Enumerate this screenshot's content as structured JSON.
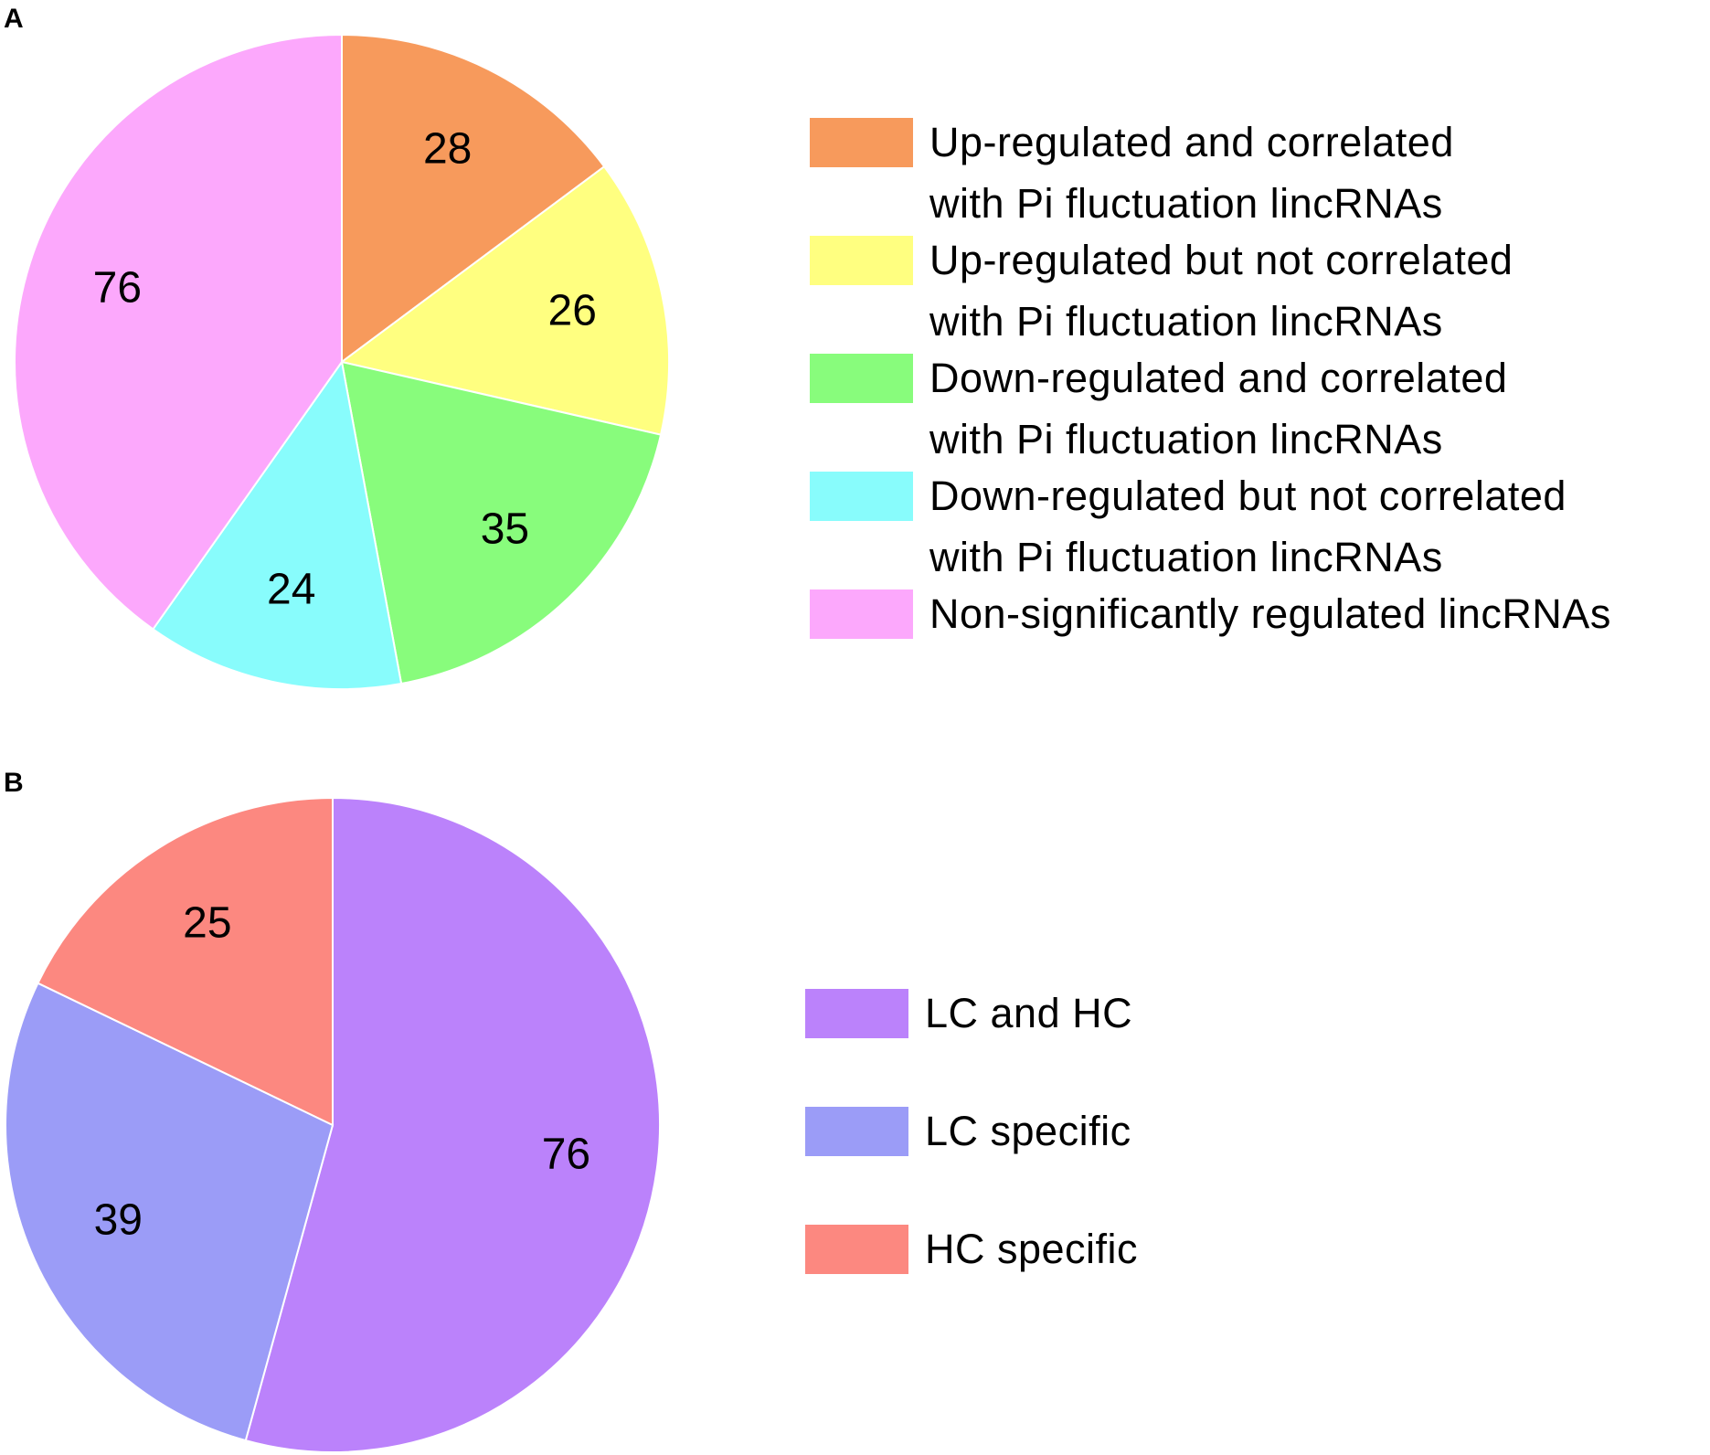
{
  "chart_data": [
    {
      "type": "pie",
      "panel_label": "A",
      "categories": [
        "Up-regulated and correlated\nwith Pi fluctuation lincRNAs",
        "Up-regulated but not correlated\nwith Pi fluctuation lincRNAs",
        "Down-regulated and correlated\nwith Pi fluctuation lincRNAs",
        "Down-regulated but not correlated\nwith Pi fluctuation lincRNAs",
        "Non-significantly regulated lincRNAs"
      ],
      "values": [
        28,
        26,
        35,
        24,
        76
      ],
      "colors": [
        "#f79a5c",
        "#ffff80",
        "#88fc7c",
        "#88fcfc",
        "#fca8fc"
      ]
    },
    {
      "type": "pie",
      "panel_label": "B",
      "categories": [
        "LC and HC",
        "LC specific",
        "HC specific"
      ],
      "values": [
        76,
        39,
        25
      ],
      "colors": [
        "#bb82fb",
        "#9b9cf7",
        "#fc8880"
      ]
    }
  ]
}
